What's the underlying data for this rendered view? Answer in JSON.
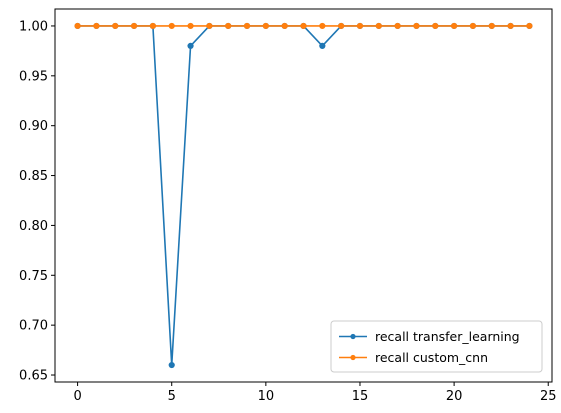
{
  "chart_data": {
    "type": "line",
    "title": "",
    "xlabel": "",
    "ylabel": "",
    "x": [
      0,
      1,
      2,
      3,
      4,
      5,
      6,
      7,
      8,
      9,
      10,
      11,
      12,
      13,
      14,
      15,
      16,
      17,
      18,
      19,
      20,
      21,
      22,
      23,
      24
    ],
    "xlim": [
      -1.2,
      25.2
    ],
    "ylim": [
      0.643,
      1.017
    ],
    "xticks": [
      0,
      5,
      10,
      15,
      20,
      25
    ],
    "xtick_labels": [
      "0",
      "5",
      "10",
      "15",
      "20",
      "25"
    ],
    "yticks": [
      0.65,
      0.7,
      0.75,
      0.8,
      0.85,
      0.9,
      0.95,
      1.0
    ],
    "ytick_labels": [
      "0.65",
      "0.70",
      "0.75",
      "0.80",
      "0.85",
      "0.90",
      "0.95",
      "1.00"
    ],
    "grid": false,
    "legend_position": "lower-right",
    "series": [
      {
        "name": "recall transfer_learning",
        "color": "#1f77b4",
        "marker": "circle",
        "values": [
          1.0,
          1.0,
          1.0,
          1.0,
          1.0,
          0.66,
          0.98,
          1.0,
          1.0,
          1.0,
          1.0,
          1.0,
          1.0,
          0.98,
          1.0,
          1.0,
          1.0,
          1.0,
          1.0,
          1.0,
          1.0,
          1.0,
          1.0,
          1.0,
          1.0
        ]
      },
      {
        "name": "recall custom_cnn",
        "color": "#ff7f0e",
        "marker": "circle",
        "values": [
          1.0,
          1.0,
          1.0,
          1.0,
          1.0,
          1.0,
          1.0,
          1.0,
          1.0,
          1.0,
          1.0,
          1.0,
          1.0,
          1.0,
          1.0,
          1.0,
          1.0,
          1.0,
          1.0,
          1.0,
          1.0,
          1.0,
          1.0,
          1.0,
          1.0
        ]
      }
    ]
  }
}
